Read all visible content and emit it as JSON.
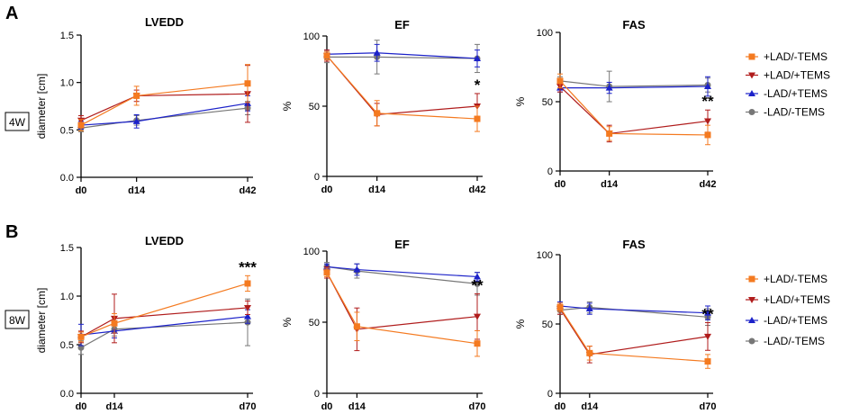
{
  "colors": {
    "+LAD/-TEMS": "#f47a20",
    "+LAD/+TEMS": "#b01c1c",
    "-LAD/+TEMS": "#1c22c9",
    "-LAD/-TEMS": "#777777"
  },
  "panels": [
    {
      "letter": "A",
      "row_label": "4W",
      "legend": [
        "+LAD/-TEMS",
        "+LAD/+TEMS",
        "-LAD/+TEMS",
        "-LAD/-TEMS"
      ]
    },
    {
      "letter": "B",
      "row_label": "8W",
      "legend": [
        "+LAD/-TEMS",
        "+LAD/+TEMS",
        "-LAD/+TEMS",
        "-LAD/-TEMS"
      ]
    }
  ],
  "chart_data": [
    {
      "type": "line",
      "panel": "A",
      "title": "LVEDD",
      "xlabel": "",
      "ylabel": "diameter [cm]",
      "ylim": [
        0,
        1.5
      ],
      "yticks": [
        "0.0",
        "0.5",
        "1.0",
        "1.5"
      ],
      "x": [
        0,
        14,
        42
      ],
      "x_labels": [
        "d0",
        "d14",
        "d42"
      ],
      "annotation": "",
      "series": [
        {
          "name": "+LAD/-TEMS",
          "marker": "square",
          "values": [
            0.55,
            0.86,
            0.99
          ],
          "err": [
            0.06,
            0.1,
            0.2
          ]
        },
        {
          "name": "+LAD/+TEMS",
          "marker": "triangle-down",
          "values": [
            0.6,
            0.86,
            0.88
          ],
          "err": [
            0.05,
            0.06,
            0.3
          ]
        },
        {
          "name": "-LAD/+TEMS",
          "marker": "triangle-up",
          "values": [
            0.55,
            0.59,
            0.78
          ],
          "err": [
            0.04,
            0.07,
            0.08
          ]
        },
        {
          "name": "-LAD/-TEMS",
          "marker": "circle",
          "values": [
            0.52,
            0.6,
            0.73
          ],
          "err": [
            0.04,
            0.05,
            0.07
          ]
        }
      ]
    },
    {
      "type": "line",
      "panel": "A",
      "title": "EF",
      "xlabel": "",
      "ylabel": "%",
      "ylim": [
        0,
        100
      ],
      "yticks": [
        "0",
        "50",
        "100"
      ],
      "x": [
        0,
        14,
        42
      ],
      "x_labels": [
        "d0",
        "d14",
        "d42"
      ],
      "annotation": "*",
      "series": [
        {
          "name": "+LAD/-TEMS",
          "marker": "square",
          "values": [
            86,
            45,
            41
          ],
          "err": [
            3,
            9,
            9
          ]
        },
        {
          "name": "+LAD/+TEMS",
          "marker": "triangle-down",
          "values": [
            86,
            44,
            50
          ],
          "err": [
            4,
            8,
            9
          ]
        },
        {
          "name": "-LAD/+TEMS",
          "marker": "triangle-up",
          "values": [
            87,
            88,
            84
          ],
          "err": [
            3,
            6,
            6
          ]
        },
        {
          "name": "-LAD/-TEMS",
          "marker": "circle",
          "values": [
            85,
            85,
            84
          ],
          "err": [
            4,
            12,
            10
          ]
        }
      ]
    },
    {
      "type": "line",
      "panel": "A",
      "title": "FAS",
      "xlabel": "",
      "ylabel": "%",
      "ylim": [
        0,
        100
      ],
      "yticks": [
        "0",
        "50",
        "100"
      ],
      "x": [
        0,
        14,
        42
      ],
      "x_labels": [
        "d0",
        "d14",
        "d42"
      ],
      "annotation": "**",
      "series": [
        {
          "name": "+LAD/-TEMS",
          "marker": "square",
          "values": [
            65,
            27,
            26
          ],
          "err": [
            5,
            5,
            7
          ]
        },
        {
          "name": "+LAD/+TEMS",
          "marker": "triangle-down",
          "values": [
            61,
            27,
            36
          ],
          "err": [
            4,
            6,
            8
          ]
        },
        {
          "name": "-LAD/+TEMS",
          "marker": "triangle-up",
          "values": [
            60,
            60,
            61
          ],
          "err": [
            3,
            4,
            7
          ]
        },
        {
          "name": "-LAD/-TEMS",
          "marker": "circle",
          "values": [
            65,
            61,
            62
          ],
          "err": [
            3,
            11,
            5
          ]
        }
      ]
    },
    {
      "type": "line",
      "panel": "B",
      "title": "LVEDD",
      "xlabel": "",
      "ylabel": "diameter [cm]",
      "ylim": [
        0,
        1.5
      ],
      "yticks": [
        "0.0",
        "0.5",
        "1.0",
        "1.5"
      ],
      "x": [
        0,
        14,
        70
      ],
      "x_labels": [
        "d0",
        "d14",
        "d70"
      ],
      "annotation": "***",
      "series": [
        {
          "name": "+LAD/-TEMS",
          "marker": "square",
          "values": [
            0.58,
            0.72,
            1.13
          ],
          "err": [
            0.05,
            0.1,
            0.08
          ]
        },
        {
          "name": "+LAD/+TEMS",
          "marker": "triangle-down",
          "values": [
            0.58,
            0.77,
            0.88
          ],
          "err": [
            0.06,
            0.25,
            0.07
          ]
        },
        {
          "name": "-LAD/+TEMS",
          "marker": "triangle-up",
          "values": [
            0.6,
            0.64,
            0.79
          ],
          "err": [
            0.11,
            0.07,
            0.07
          ]
        },
        {
          "name": "-LAD/-TEMS",
          "marker": "circle",
          "values": [
            0.47,
            0.66,
            0.73
          ],
          "err": [
            0.07,
            0.07,
            0.24
          ]
        }
      ]
    },
    {
      "type": "line",
      "panel": "B",
      "title": "EF",
      "xlabel": "",
      "ylabel": "%",
      "ylim": [
        0,
        100
      ],
      "yticks": [
        "0",
        "50",
        "100"
      ],
      "x": [
        0,
        14,
        70
      ],
      "x_labels": [
        "d0",
        "d14",
        "d70"
      ],
      "annotation": "**",
      "series": [
        {
          "name": "+LAD/-TEMS",
          "marker": "square",
          "values": [
            85,
            47,
            35
          ],
          "err": [
            3,
            10,
            9
          ]
        },
        {
          "name": "+LAD/+TEMS",
          "marker": "triangle-down",
          "values": [
            85,
            45,
            54
          ],
          "err": [
            4,
            15,
            16
          ]
        },
        {
          "name": "-LAD/+TEMS",
          "marker": "triangle-up",
          "values": [
            89,
            87,
            82
          ],
          "err": [
            2,
            4,
            3
          ]
        },
        {
          "name": "-LAD/-TEMS",
          "marker": "circle",
          "values": [
            89,
            86,
            77
          ],
          "err": [
            3,
            5,
            8
          ]
        }
      ]
    },
    {
      "type": "line",
      "panel": "B",
      "title": "FAS",
      "xlabel": "",
      "ylabel": "%",
      "ylim": [
        0,
        100
      ],
      "yticks": [
        "0",
        "50",
        "100"
      ],
      "x": [
        0,
        14,
        70
      ],
      "x_labels": [
        "d0",
        "d14",
        "d70"
      ],
      "annotation": "**",
      "series": [
        {
          "name": "+LAD/-TEMS",
          "marker": "square",
          "values": [
            62,
            29,
            23
          ],
          "err": [
            3,
            5,
            5
          ]
        },
        {
          "name": "+LAD/+TEMS",
          "marker": "triangle-down",
          "values": [
            61,
            28,
            41
          ],
          "err": [
            4,
            6,
            10
          ]
        },
        {
          "name": "-LAD/+TEMS",
          "marker": "triangle-up",
          "values": [
            63,
            61,
            58
          ],
          "err": [
            3,
            4,
            5
          ]
        },
        {
          "name": "-LAD/-TEMS",
          "marker": "circle",
          "values": [
            60,
            62,
            55
          ],
          "err": [
            3,
            4,
            6
          ]
        }
      ]
    }
  ]
}
